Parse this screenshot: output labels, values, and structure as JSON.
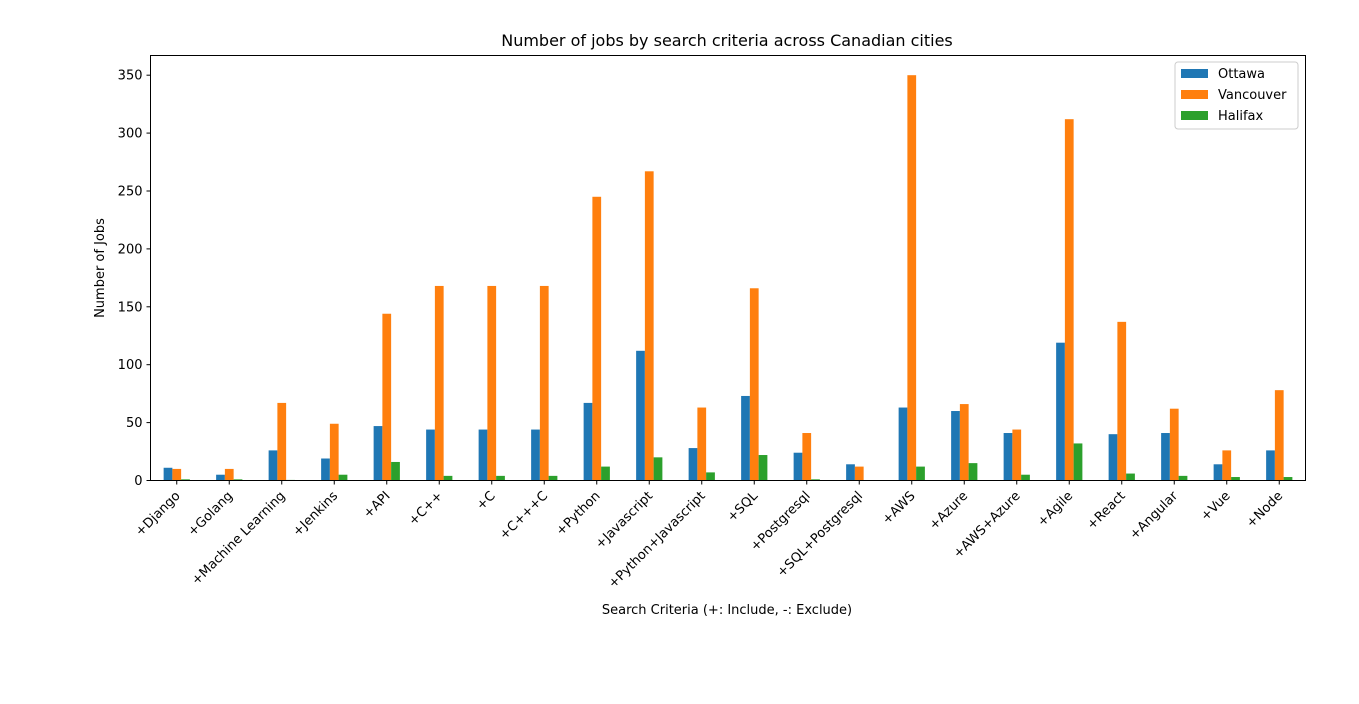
{
  "chart_data": {
    "type": "bar",
    "title": "Number of jobs by search criteria across Canadian cities",
    "xlabel": "Search Criteria (+: Include, -: Exclude)",
    "ylabel": "Number of Jobs",
    "ylim": [
      0,
      367
    ],
    "yticks": [
      0,
      50,
      100,
      150,
      200,
      250,
      300,
      350
    ],
    "grid": false,
    "legend_position": "top-right",
    "categories": [
      "+Django",
      "+Golang",
      "+Machine Learning",
      "+Jenkins",
      "+API",
      "+C++",
      "+C",
      "+C+++C",
      "+Python",
      "+Javascript",
      "+Python+Javascript",
      "+SQL",
      "+Postgresql",
      "+SQL+Postgresql",
      "+AWS",
      "+Azure",
      "+AWS+Azure",
      "+Agile",
      "+React",
      "+Angular",
      "+Vue",
      "+Node"
    ],
    "series": [
      {
        "name": "Ottawa",
        "color": "#1f77b4",
        "values": [
          11,
          5,
          26,
          19,
          47,
          44,
          44,
          44,
          67,
          112,
          28,
          73,
          24,
          14,
          63,
          60,
          41,
          119,
          40,
          41,
          14,
          26
        ]
      },
      {
        "name": "Vancouver",
        "color": "#ff7f0e",
        "values": [
          10,
          10,
          67,
          49,
          144,
          168,
          168,
          168,
          245,
          267,
          63,
          166,
          41,
          12,
          350,
          66,
          44,
          312,
          137,
          62,
          26,
          78
        ]
      },
      {
        "name": "Halifax",
        "color": "#2ca02c",
        "values": [
          1,
          1,
          0.5,
          5,
          16,
          4,
          4,
          4,
          12,
          20,
          7,
          22,
          1,
          0,
          12,
          15,
          5,
          32,
          6,
          4,
          3,
          3
        ]
      }
    ]
  }
}
